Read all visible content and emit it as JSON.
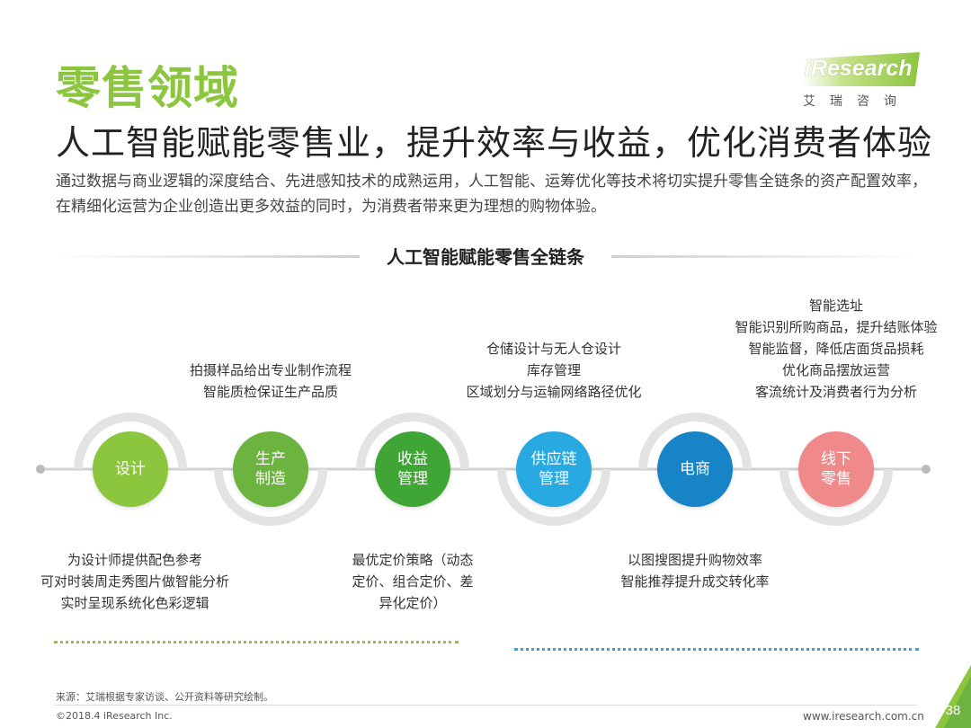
{
  "slide": {
    "section_title": "零售领域",
    "subtitle": "人工智能赋能零售业，提升效率与收益，优化消费者体验",
    "intro": "通过数据与商业逻辑的深度结合、先进感知技术的成熟运用，人工智能、运筹优化等技术将切实提升零售全链条的资产配置效率，在精细化运营为企业创造出更多效益的同时，为消费者带来更为理想的购物体验。"
  },
  "logo": {
    "text": "iResearch",
    "cn": "艾瑞咨询",
    "mark_color": "#8cc63f"
  },
  "chain": {
    "title": "人工智能赋能零售全链条",
    "nodes": [
      {
        "label": "设计",
        "color": "#8cc63f",
        "desc": [
          "为设计师提供配色参考",
          "可对时装周走秀图片做智能分析",
          "实时呈现系统化色彩逻辑"
        ]
      },
      {
        "label": "生产\n制造",
        "color": "#6cb33f",
        "desc": [
          "拍摄样品给出专业制作流程",
          "智能质检保证生产品质"
        ]
      },
      {
        "label": "收益\n管理",
        "color": "#3fa535",
        "desc": [
          "最优定价策略（动态",
          "定价、组合定价、差",
          "异化定价）"
        ]
      },
      {
        "label": "供应链\n管理",
        "color": "#29a9e1",
        "desc": [
          "仓储设计与无人仓设计",
          "库存管理",
          "区域划分与运输网络路径优化"
        ]
      },
      {
        "label": "电商",
        "color": "#1784c7",
        "desc": [
          "以图搜图提升购物效率",
          "智能推荐提升成交转化率"
        ]
      },
      {
        "label": "线下\n零售",
        "color": "#f08a8a",
        "desc": [
          "智能选址",
          "智能识别所购商品，提升结账体验",
          "智能监督，降低店面货品损耗",
          "优化商品摆放运营",
          "客流统计及消费者行为分析"
        ]
      }
    ]
  },
  "footer": {
    "source": "来源：艾瑞根据专家访谈、公开资料等研究绘制。",
    "copyright": "©2018.4 iResearch Inc.",
    "website": "www.iresearch.com.cn",
    "page_number": "38"
  },
  "colors": {
    "accent_green": "#8cc63f",
    "accent_blue": "#29a9e1"
  }
}
